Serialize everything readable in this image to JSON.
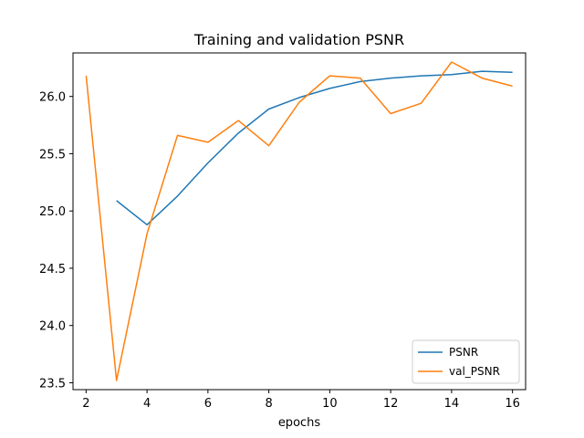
{
  "chart_data": {
    "type": "line",
    "title": "Training and validation PSNR",
    "xlabel": "epochs",
    "ylabel": "",
    "xlim": [
      1.57,
      16.43
    ],
    "ylim": [
      23.44,
      26.38
    ],
    "xticks": [
      2,
      4,
      6,
      8,
      10,
      12,
      14,
      16
    ],
    "yticks": [
      23.5,
      24.0,
      24.5,
      25.0,
      25.5,
      26.0
    ],
    "grid": false,
    "legend_position": "bottom-right",
    "series": [
      {
        "name": "PSNR",
        "color": "#1f77b4",
        "x": [
          3,
          4,
          5,
          6,
          7,
          8,
          9,
          10,
          11,
          12,
          13,
          14,
          15,
          16
        ],
        "y": [
          25.09,
          24.88,
          25.13,
          25.42,
          25.68,
          25.89,
          25.99,
          26.07,
          26.13,
          26.16,
          26.18,
          26.19,
          26.22,
          26.21
        ]
      },
      {
        "name": "val_PSNR",
        "color": "#ff7f0e",
        "x": [
          2,
          3,
          4,
          5,
          6,
          7,
          8,
          9,
          10,
          11,
          12,
          13,
          14,
          15,
          16
        ],
        "y": [
          26.18,
          23.52,
          24.8,
          25.66,
          25.6,
          25.79,
          25.57,
          25.95,
          26.18,
          26.16,
          25.85,
          25.94,
          26.3,
          26.16,
          26.09
        ]
      }
    ]
  }
}
